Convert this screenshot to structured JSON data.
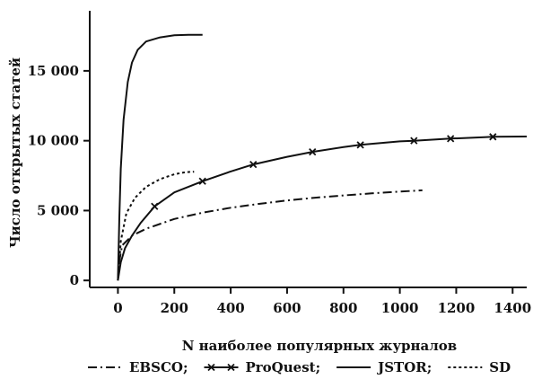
{
  "chart_data": {
    "type": "line",
    "xlabel": "N наиболее популярных журналов",
    "ylabel": "Число открытых статей",
    "xlim": [
      -100,
      1450
    ],
    "ylim": [
      -500,
      19300
    ],
    "x_ticks": [
      0,
      200,
      400,
      600,
      800,
      1000,
      1200,
      1400
    ],
    "x_tick_labels": [
      "0",
      "200",
      "400",
      "600",
      "800",
      "1000",
      "1200",
      "1400"
    ],
    "y_ticks": [
      0,
      5000,
      10000,
      15000
    ],
    "y_tick_labels": [
      "0",
      "5 000",
      "10 000",
      "15 000"
    ],
    "grid": false,
    "legend_position": "bottom",
    "series": [
      {
        "name": "EBSCO;",
        "style": "dashdot",
        "marker": "none",
        "points": [
          [
            0,
            0
          ],
          [
            5,
            1400
          ],
          [
            15,
            2500
          ],
          [
            50,
            3200
          ],
          [
            100,
            3700
          ],
          [
            200,
            4400
          ],
          [
            300,
            4850
          ],
          [
            400,
            5200
          ],
          [
            500,
            5480
          ],
          [
            600,
            5720
          ],
          [
            700,
            5920
          ],
          [
            800,
            6080
          ],
          [
            900,
            6230
          ],
          [
            1000,
            6360
          ],
          [
            1080,
            6450
          ]
        ]
      },
      {
        "name": "ProQuest;",
        "style": "solid",
        "marker": "x",
        "points": [
          [
            0,
            0
          ],
          [
            10,
            1300
          ],
          [
            25,
            2300
          ],
          [
            50,
            3200
          ],
          [
            80,
            4100
          ],
          [
            130,
            5300
          ],
          [
            200,
            6300
          ],
          [
            300,
            7100
          ],
          [
            400,
            7800
          ],
          [
            480,
            8300
          ],
          [
            600,
            8850
          ],
          [
            690,
            9200
          ],
          [
            800,
            9550
          ],
          [
            860,
            9700
          ],
          [
            1000,
            9950
          ],
          [
            1050,
            10000
          ],
          [
            1180,
            10150
          ],
          [
            1300,
            10250
          ],
          [
            1330,
            10280
          ],
          [
            1450,
            10300
          ]
        ],
        "marked_points": [
          [
            130,
            5300
          ],
          [
            300,
            7100
          ],
          [
            480,
            8300
          ],
          [
            690,
            9200
          ],
          [
            860,
            9700
          ],
          [
            1050,
            10000
          ],
          [
            1180,
            10150
          ],
          [
            1330,
            10280
          ]
        ]
      },
      {
        "name": "JSTOR;",
        "style": "solid",
        "marker": "none",
        "points": [
          [
            0,
            0
          ],
          [
            5,
            4500
          ],
          [
            10,
            8000
          ],
          [
            20,
            11500
          ],
          [
            35,
            14200
          ],
          [
            50,
            15600
          ],
          [
            70,
            16500
          ],
          [
            100,
            17100
          ],
          [
            150,
            17400
          ],
          [
            200,
            17550
          ],
          [
            250,
            17580
          ],
          [
            300,
            17580
          ]
        ]
      },
      {
        "name": "SD",
        "style": "dotted",
        "marker": "none",
        "points": [
          [
            0,
            0
          ],
          [
            10,
            2800
          ],
          [
            30,
            4800
          ],
          [
            60,
            5900
          ],
          [
            100,
            6700
          ],
          [
            150,
            7250
          ],
          [
            200,
            7600
          ],
          [
            240,
            7750
          ],
          [
            270,
            7780
          ]
        ]
      }
    ]
  },
  "legend": {
    "items": [
      {
        "label": "EBSCO;",
        "style": "dashdot"
      },
      {
        "label": "ProQuest;",
        "style": "solid-x"
      },
      {
        "label": "JSTOR;",
        "style": "solid"
      },
      {
        "label": "SD",
        "style": "dotted"
      }
    ]
  }
}
